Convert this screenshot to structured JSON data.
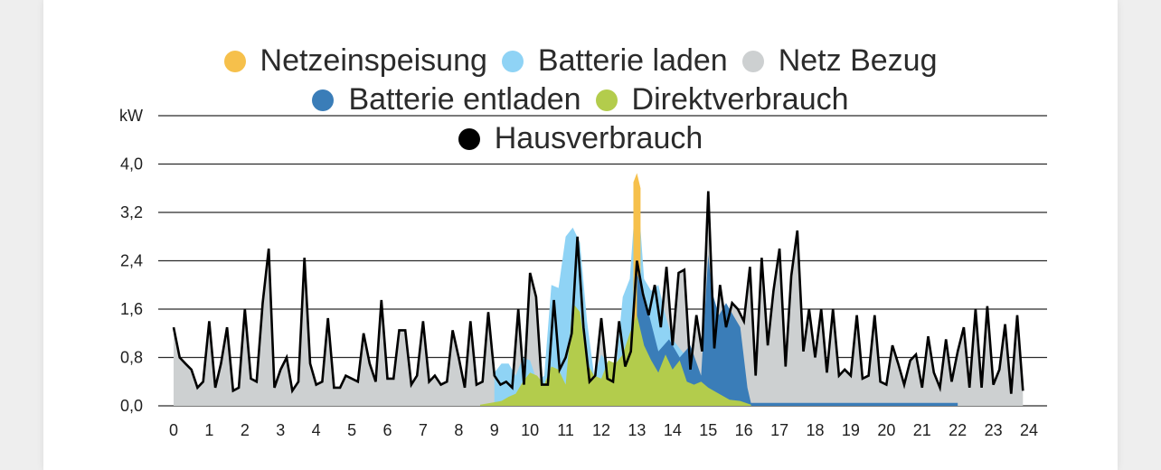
{
  "chart_data": {
    "type": "area",
    "ylabel": "kW",
    "ylim": [
      0,
      4.8
    ],
    "yticks": [
      "0,0",
      "0,8",
      "1,6",
      "2,4",
      "3,2",
      "4,0"
    ],
    "yticks_values": [
      0,
      0.8,
      1.6,
      2.4,
      3.2,
      4.0
    ],
    "xlim": [
      0,
      24
    ],
    "xticks": [
      "0",
      "1",
      "2",
      "3",
      "4",
      "5",
      "6",
      "7",
      "8",
      "9",
      "10",
      "11",
      "12",
      "13",
      "14",
      "15",
      "16",
      "17",
      "18",
      "19",
      "20",
      "21",
      "22",
      "23",
      "24"
    ],
    "grid": true,
    "legend_placement": "top",
    "legend": [
      {
        "name": "Netzeinspeisung",
        "color": "#f6c04b"
      },
      {
        "name": "Batterie laden",
        "color": "#8fd3f5"
      },
      {
        "name": "Netz Bezug",
        "color": "#cdd0d1"
      },
      {
        "name": "Batterie entladen",
        "color": "#3a7db8"
      },
      {
        "name": "Direktverbrauch",
        "color": "#b3cc4c"
      },
      {
        "name": "Hausverbrauch",
        "color": "#000000"
      }
    ],
    "series": [
      {
        "name": "Hausverbrauch",
        "color": "#000000",
        "x": [
          0,
          0.17,
          0.33,
          0.5,
          0.67,
          0.83,
          1.0,
          1.17,
          1.33,
          1.5,
          1.67,
          1.83,
          2.0,
          2.17,
          2.33,
          2.5,
          2.67,
          2.83,
          3.0,
          3.17,
          3.33,
          3.5,
          3.67,
          3.83,
          4.0,
          4.17,
          4.33,
          4.5,
          4.67,
          4.83,
          5.0,
          5.17,
          5.33,
          5.5,
          5.67,
          5.83,
          6.0,
          6.17,
          6.33,
          6.5,
          6.67,
          6.83,
          7.0,
          7.17,
          7.33,
          7.5,
          7.67,
          7.83,
          8.0,
          8.17,
          8.33,
          8.5,
          8.67,
          8.83,
          9.0,
          9.17,
          9.33,
          9.5,
          9.67,
          9.83,
          10.0,
          10.17,
          10.33,
          10.5,
          10.67,
          10.83,
          11.0,
          11.17,
          11.33,
          11.5,
          11.67,
          11.83,
          12.0,
          12.17,
          12.33,
          12.5,
          12.67,
          12.83,
          13.0,
          13.17,
          13.33,
          13.5,
          13.67,
          13.83,
          14.0,
          14.17,
          14.33,
          14.5,
          14.67,
          14.83,
          15.0,
          15.17,
          15.33,
          15.5,
          15.67,
          15.83,
          16.0,
          16.17,
          16.33,
          16.5,
          16.67,
          16.83,
          17.0,
          17.17,
          17.33,
          17.5,
          17.67,
          17.83,
          18.0,
          18.17,
          18.33,
          18.5,
          18.67,
          18.83,
          19.0,
          19.17,
          19.33,
          19.5,
          19.67,
          19.83,
          20.0,
          20.17,
          20.33,
          20.5,
          20.67,
          20.83,
          21.0,
          21.17,
          21.33,
          21.5,
          21.67,
          21.83,
          22.0,
          22.17,
          22.33,
          22.5,
          22.67,
          22.83,
          23.0,
          23.17,
          23.33,
          23.5,
          23.67,
          23.83
        ],
        "values": [
          1.3,
          0.8,
          0.7,
          0.6,
          0.3,
          0.4,
          1.4,
          0.3,
          0.7,
          1.3,
          0.25,
          0.3,
          1.6,
          0.45,
          0.4,
          1.7,
          2.6,
          0.3,
          0.6,
          0.8,
          0.25,
          0.4,
          2.45,
          0.7,
          0.35,
          0.4,
          1.45,
          0.3,
          0.3,
          0.5,
          0.45,
          0.4,
          1.2,
          0.7,
          0.4,
          1.75,
          0.45,
          0.45,
          1.25,
          1.25,
          0.35,
          0.5,
          1.4,
          0.4,
          0.5,
          0.35,
          0.4,
          1.25,
          0.8,
          0.3,
          1.4,
          0.35,
          0.4,
          1.55,
          0.5,
          0.35,
          0.4,
          0.3,
          1.6,
          0.35,
          2.2,
          1.8,
          0.35,
          0.35,
          1.75,
          0.6,
          0.8,
          1.2,
          2.8,
          1.3,
          0.4,
          0.5,
          1.45,
          0.45,
          0.4,
          1.4,
          0.65,
          0.9,
          2.4,
          1.85,
          1.5,
          2.0,
          1.3,
          2.3,
          1.0,
          2.2,
          2.25,
          0.6,
          1.5,
          0.9,
          3.55,
          0.95,
          2.0,
          1.3,
          1.7,
          1.6,
          1.4,
          2.3,
          0.5,
          2.45,
          1.0,
          1.9,
          2.6,
          0.65,
          2.15,
          2.9,
          0.9,
          1.6,
          0.8,
          1.6,
          0.55,
          1.6,
          0.5,
          0.6,
          0.5,
          1.5,
          0.45,
          0.5,
          1.5,
          0.4,
          0.35,
          1.0,
          0.7,
          0.35,
          0.75,
          0.85,
          0.3,
          1.15,
          0.55,
          0.3,
          1.1,
          0.4,
          0.9,
          1.3,
          0.3,
          1.6,
          0.3,
          1.65,
          0.35,
          0.6,
          1.35,
          0.2,
          1.5,
          0.25
        ]
      },
      {
        "name": "Batterie laden",
        "color": "#8fd3f5",
        "x": [
          9.0,
          9.2,
          9.4,
          9.6,
          9.8,
          10.0,
          10.2,
          10.4,
          10.6,
          10.8,
          11.0,
          11.2,
          11.4,
          11.6,
          11.8,
          12.0,
          12.2,
          12.4,
          12.6,
          12.8,
          13.0,
          13.2,
          13.4,
          13.6,
          13.8,
          14.0,
          14.2,
          14.4,
          14.6,
          14.8,
          15.0
        ],
        "values": [
          0.55,
          0.7,
          0.7,
          0.5,
          0.8,
          0.75,
          0.4,
          0.5,
          2.0,
          1.95,
          2.8,
          2.95,
          2.7,
          1.4,
          0.5,
          0.85,
          0.7,
          0.55,
          1.8,
          2.1,
          3.75,
          2.1,
          1.9,
          2.0,
          1.5,
          1.1,
          0.95,
          0.8,
          0.5,
          0.4,
          0.45
        ]
      },
      {
        "name": "Netzeinspeisung",
        "color": "#f6c04b",
        "x": [
          12.9,
          13.0,
          13.1
        ],
        "values": [
          3.7,
          3.85,
          3.6
        ]
      },
      {
        "name": "Batterie entladen",
        "color": "#3a7db8",
        "x": [
          13.0,
          13.3,
          13.6,
          13.9,
          14.2,
          14.5,
          14.8,
          15.0,
          15.1,
          15.3,
          15.5,
          15.7,
          15.9,
          16.1,
          16.2,
          19.3,
          19.7,
          20.0,
          20.4,
          20.8,
          21.2,
          21.6,
          22.0
        ],
        "values": [
          2.2,
          1.6,
          0.9,
          1.1,
          0.8,
          1.0,
          0.5,
          2.5,
          1.9,
          1.5,
          1.7,
          1.5,
          1.3,
          0.3,
          0.05,
          0.05,
          0.05,
          0.05,
          0.05,
          0.05,
          0.05,
          0.05,
          0.05
        ]
      },
      {
        "name": "Direktverbrauch",
        "color": "#b3cc4c",
        "x": [
          8.6,
          8.9,
          9.2,
          9.4,
          9.6,
          9.8,
          10.0,
          10.2,
          10.4,
          10.6,
          10.8,
          11.0,
          11.2,
          11.4,
          11.6,
          11.8,
          12.0,
          12.2,
          12.4,
          12.6,
          12.8,
          13.0,
          13.2,
          13.4,
          13.6,
          13.8,
          14.0,
          14.2,
          14.4,
          14.6,
          14.8,
          15.0,
          15.3,
          15.6,
          15.9,
          16.2
        ],
        "values": [
          0.02,
          0.05,
          0.08,
          0.15,
          0.2,
          0.4,
          0.55,
          0.5,
          0.35,
          0.65,
          0.6,
          0.35,
          1.7,
          1.55,
          0.7,
          0.5,
          0.45,
          0.75,
          0.7,
          0.85,
          1.2,
          1.5,
          1.0,
          0.75,
          0.55,
          0.85,
          0.6,
          0.75,
          0.4,
          0.35,
          0.4,
          0.3,
          0.2,
          0.1,
          0.08,
          0.02
        ]
      }
    ]
  }
}
